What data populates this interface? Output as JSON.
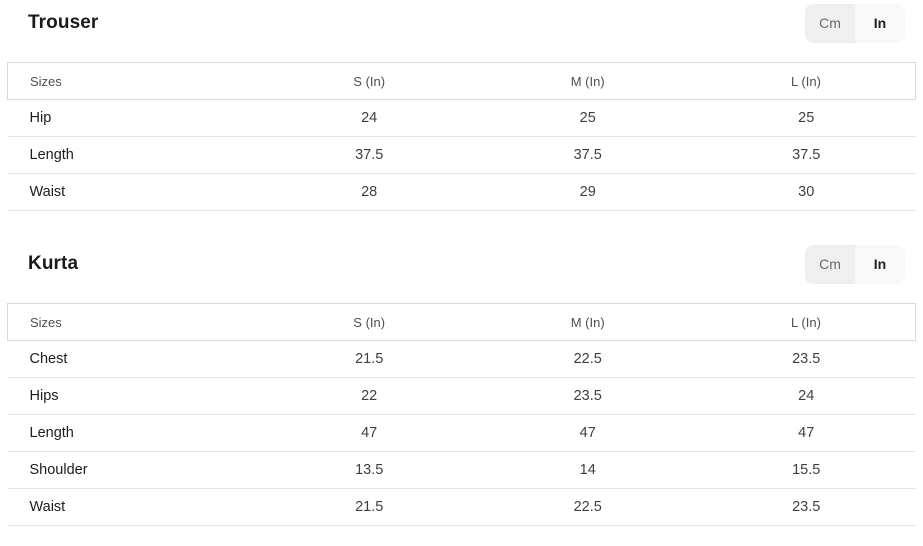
{
  "colors": {
    "background": "#ffffff",
    "header_box_border": "#d9d9d9",
    "row_divider": "#e4e4e4",
    "toggle_cm_bg": "#efefef",
    "toggle_in_bg": "#f8f8f8",
    "title_text": "#1a1a1a",
    "header_text": "#4f4f4f",
    "value_text": "#3f3f3f"
  },
  "sections": [
    {
      "title": "Trouser",
      "unit_toggle": {
        "options": [
          "Cm",
          "In"
        ],
        "selected": "In"
      },
      "table": {
        "headers": [
          "Sizes",
          "S (In)",
          "M (In)",
          "L (In)"
        ],
        "rows": [
          {
            "label": "Hip",
            "values": [
              "24",
              "25",
              "25"
            ]
          },
          {
            "label": "Length",
            "values": [
              "37.5",
              "37.5",
              "37.5"
            ]
          },
          {
            "label": "Waist",
            "values": [
              "28",
              "29",
              "30"
            ]
          }
        ]
      }
    },
    {
      "title": "Kurta",
      "unit_toggle": {
        "options": [
          "Cm",
          "In"
        ],
        "selected": "In"
      },
      "table": {
        "headers": [
          "Sizes",
          "S (In)",
          "M (In)",
          "L (In)"
        ],
        "rows": [
          {
            "label": "Chest",
            "values": [
              "21.5",
              "22.5",
              "23.5"
            ]
          },
          {
            "label": "Hips",
            "values": [
              "22",
              "23.5",
              "24"
            ]
          },
          {
            "label": "Length",
            "values": [
              "47",
              "47",
              "47"
            ]
          },
          {
            "label": "Shoulder",
            "values": [
              "13.5",
              "14",
              "15.5"
            ]
          },
          {
            "label": "Waist",
            "values": [
              "21.5",
              "22.5",
              "23.5"
            ]
          }
        ]
      }
    }
  ]
}
